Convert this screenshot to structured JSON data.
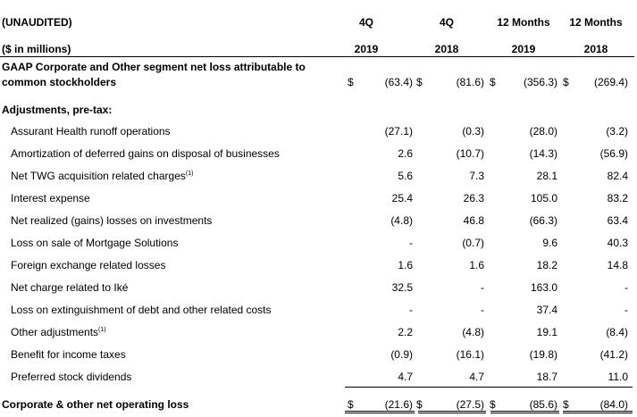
{
  "header": {
    "unaudited": "(UNAUDITED)",
    "units": "($ in millions)",
    "columns": [
      {
        "period": "4Q",
        "year": "2019"
      },
      {
        "period": "4Q",
        "year": "2018"
      },
      {
        "period": "12 Months",
        "year": "2019"
      },
      {
        "period": "12 Months",
        "year": "2018"
      }
    ]
  },
  "gaap_row": {
    "label_line1": "GAAP Corporate and Other segment net loss attributable to",
    "label_line2": "common stockholders",
    "values": [
      "(63.4)",
      "(81.6)",
      "(356.3)",
      "(269.4)"
    ],
    "currency": "$"
  },
  "adjustments_header": "Adjustments, pre-tax:",
  "rows": [
    {
      "label": "Assurant Health runoff operations",
      "note": "",
      "values": [
        "(27.1)",
        "(0.3)",
        "(28.0)",
        "(3.2)"
      ]
    },
    {
      "label": "Amortization of deferred gains on disposal of businesses",
      "note": "",
      "values": [
        "2.6",
        "(10.7)",
        "(14.3)",
        "(56.9)"
      ]
    },
    {
      "label": "Net TWG acquisition related charges",
      "note": "(1)",
      "values": [
        "5.6",
        "7.3",
        "28.1",
        "82.4"
      ]
    },
    {
      "label": "Interest expense",
      "note": "",
      "values": [
        "25.4",
        "26.3",
        "105.0",
        "83.2"
      ]
    },
    {
      "label": "Net realized (gains) losses on investments",
      "note": "",
      "values": [
        "(4.8)",
        "46.8",
        "(66.3)",
        "63.4"
      ]
    },
    {
      "label": "Loss on sale of Mortgage Solutions",
      "note": "",
      "values": [
        "-",
        "(0.7)",
        "9.6",
        "40.3"
      ]
    },
    {
      "label": "Foreign exchange related losses",
      "note": "",
      "values": [
        "1.6",
        "1.6",
        "18.2",
        "14.8"
      ]
    },
    {
      "label": "Net charge related to Iké",
      "note": "",
      "values": [
        "32.5",
        "-",
        "163.0",
        "-"
      ]
    },
    {
      "label": "Loss on extinguishment of debt and other related costs",
      "note": "",
      "values": [
        "-",
        "-",
        "37.4",
        "-"
      ]
    },
    {
      "label": "Other adjustments",
      "note": "(1)",
      "values": [
        "2.2",
        "(4.8)",
        "19.1",
        "(8.4)"
      ]
    },
    {
      "label": "Benefit for income taxes",
      "note": "",
      "values": [
        "(0.9)",
        "(16.1)",
        "(19.8)",
        "(41.2)"
      ]
    },
    {
      "label": "Preferred stock dividends",
      "note": "",
      "values": [
        "4.7",
        "4.7",
        "18.7",
        "11.0"
      ]
    }
  ],
  "total_row": {
    "label": "Corporate & other net operating loss",
    "values": [
      "(21.6)",
      "(27.5)",
      "(85.6)",
      "(84.0)"
    ],
    "currency": "$"
  }
}
